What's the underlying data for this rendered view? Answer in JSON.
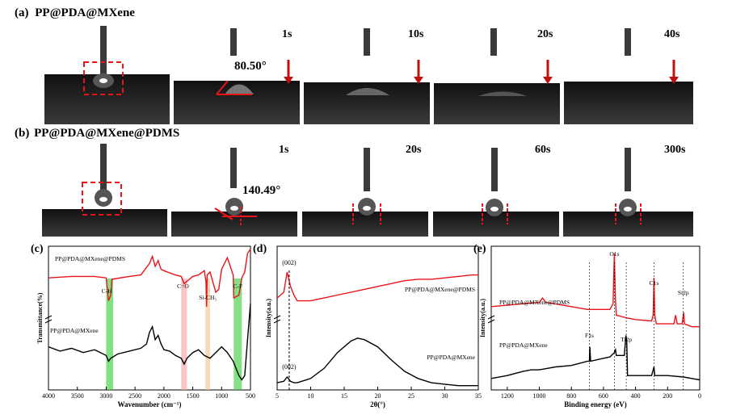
{
  "row_a": {
    "label": "(a)",
    "title": "PP@PDA@MXene",
    "angle": "80.50°",
    "times": [
      "1s",
      "10s",
      "20s",
      "40s"
    ]
  },
  "row_b": {
    "label": "(b)",
    "title": "PP@PDA@MXene@PDMS",
    "angle": "140.49°",
    "times": [
      "1s",
      "20s",
      "60s",
      "300s"
    ]
  },
  "colors": {
    "red": "#e8141a",
    "black": "#000000",
    "green": "#33cc33",
    "pink": "#f4a0a0",
    "orange": "#f7c08a"
  },
  "chart_data": [
    {
      "type": "line",
      "panel": "(c)",
      "xlabel": "Wavenumber (cm⁻¹)",
      "ylabel": "Transmittance(%)",
      "xlim": [
        4000,
        500
      ],
      "xticks": [
        "4000",
        "3500",
        "3000",
        "2500",
        "2000",
        "1500",
        "1000",
        "500"
      ],
      "series": [
        {
          "name": "PP@PDA@MXene@PDMS",
          "color": "red",
          "x": [
            4000,
            3600,
            3200,
            3000,
            2960,
            2920,
            2900,
            2600,
            2400,
            2250,
            2200,
            2150,
            2100,
            2050,
            2000,
            1800,
            1700,
            1650,
            1500,
            1400,
            1300,
            1270,
            1260,
            1250,
            1200,
            1100,
            1050,
            1000,
            900,
            800,
            790,
            700,
            650,
            600,
            550,
            500
          ],
          "y": [
            0.78,
            0.79,
            0.79,
            0.78,
            0.62,
            0.66,
            0.77,
            0.79,
            0.8,
            0.88,
            0.93,
            0.86,
            0.9,
            0.84,
            0.83,
            0.8,
            0.79,
            0.74,
            0.79,
            0.8,
            0.83,
            0.75,
            0.58,
            0.8,
            0.82,
            0.68,
            0.7,
            0.84,
            0.92,
            0.8,
            0.64,
            0.66,
            0.78,
            0.82,
            0.95,
            0.98
          ]
        },
        {
          "name": "PP@PDA@MXene",
          "color": "black",
          "x": [
            4000,
            3800,
            3600,
            3400,
            3200,
            3000,
            2960,
            2920,
            2800,
            2600,
            2400,
            2300,
            2250,
            2200,
            2150,
            2100,
            2050,
            2000,
            1900,
            1800,
            1700,
            1650,
            1600,
            1500,
            1400,
            1300,
            1200,
            1100,
            1000,
            900,
            800,
            700,
            650,
            600,
            550,
            500
          ],
          "y": [
            0.3,
            0.27,
            0.29,
            0.26,
            0.28,
            0.24,
            0.2,
            0.22,
            0.25,
            0.27,
            0.29,
            0.32,
            0.4,
            0.44,
            0.35,
            0.38,
            0.32,
            0.28,
            0.27,
            0.24,
            0.22,
            0.18,
            0.22,
            0.26,
            0.28,
            0.24,
            0.22,
            0.26,
            0.3,
            0.26,
            0.2,
            0.1,
            0.07,
            0.1,
            0.35,
            0.6
          ]
        }
      ],
      "annotations": [
        "C-H",
        "C=O",
        "Si-CH₃",
        "C-F"
      ]
    },
    {
      "type": "line",
      "panel": "(d)",
      "xlabel": "2θ(°)",
      "ylabel": "Intensity(a.u.)",
      "xlim": [
        5,
        35
      ],
      "xticks": [
        "5",
        "10",
        "15",
        "20",
        "25",
        "30",
        "35"
      ],
      "series": [
        {
          "name": "PP@PDA@MXene@PDMS",
          "color": "red",
          "x": [
            5,
            6,
            6.5,
            7,
            7.5,
            8,
            10,
            12,
            14,
            16,
            18,
            20,
            22,
            24,
            26,
            28,
            30,
            32,
            34,
            35
          ],
          "y": [
            0.64,
            0.68,
            0.82,
            0.72,
            0.66,
            0.62,
            0.62,
            0.64,
            0.66,
            0.68,
            0.7,
            0.72,
            0.74,
            0.76,
            0.77,
            0.77,
            0.78,
            0.79,
            0.8,
            0.8
          ]
        },
        {
          "name": "PP@PDA@MXene",
          "color": "black",
          "x": [
            5,
            6,
            6.5,
            7,
            7.5,
            8,
            10,
            12,
            14,
            16,
            17,
            18,
            20,
            22,
            24,
            26,
            28,
            30,
            32,
            34,
            35
          ],
          "y": [
            0.05,
            0.06,
            0.09,
            0.06,
            0.05,
            0.05,
            0.08,
            0.15,
            0.26,
            0.34,
            0.36,
            0.35,
            0.3,
            0.21,
            0.13,
            0.08,
            0.05,
            0.04,
            0.03,
            0.03,
            0.03
          ]
        }
      ],
      "annotations": [
        "(002)",
        "(002)"
      ]
    },
    {
      "type": "line",
      "panel": "(e)",
      "xlabel": "Binding energy (eV)",
      "ylabel": "Intensity(a.u.)",
      "xlim": [
        1300,
        0
      ],
      "xticks": [
        "1200",
        "1000",
        "800",
        "600",
        "400",
        "200",
        "0"
      ],
      "series": [
        {
          "name": "PP@PDA@MXene@PDMS",
          "color": "red",
          "x": [
            1300,
            1100,
            1000,
            980,
            960,
            800,
            700,
            600,
            560,
            540,
            532,
            525,
            520,
            450,
            400,
            300,
            290,
            285,
            280,
            270,
            200,
            160,
            150,
            140,
            110,
            102,
            100,
            95,
            50,
            0
          ],
          "y": [
            0.58,
            0.6,
            0.61,
            0.64,
            0.61,
            0.58,
            0.56,
            0.56,
            0.56,
            0.6,
            0.95,
            0.62,
            0.52,
            0.5,
            0.49,
            0.48,
            0.52,
            0.78,
            0.52,
            0.46,
            0.46,
            0.46,
            0.52,
            0.46,
            0.46,
            0.52,
            0.54,
            0.46,
            0.44,
            0.44
          ]
        },
        {
          "name": "PP@PDA@MXene",
          "color": "black",
          "x": [
            1300,
            1200,
            1100,
            1050,
            1000,
            950,
            900,
            800,
            700,
            688,
            685,
            680,
            600,
            560,
            532,
            525,
            520,
            470,
            460,
            455,
            450,
            400,
            300,
            285,
            280,
            200,
            100,
            50,
            0
          ],
          "y": [
            0.08,
            0.1,
            0.13,
            0.14,
            0.14,
            0.15,
            0.16,
            0.17,
            0.2,
            0.2,
            0.3,
            0.2,
            0.22,
            0.23,
            0.26,
            0.28,
            0.24,
            0.24,
            0.38,
            0.34,
            0.1,
            0.1,
            0.1,
            0.16,
            0.1,
            0.1,
            0.09,
            0.08,
            0.07
          ]
        }
      ],
      "annotations": [
        "O1s",
        "C1s",
        "Si2p",
        "F1s",
        "Ti2p"
      ]
    }
  ]
}
